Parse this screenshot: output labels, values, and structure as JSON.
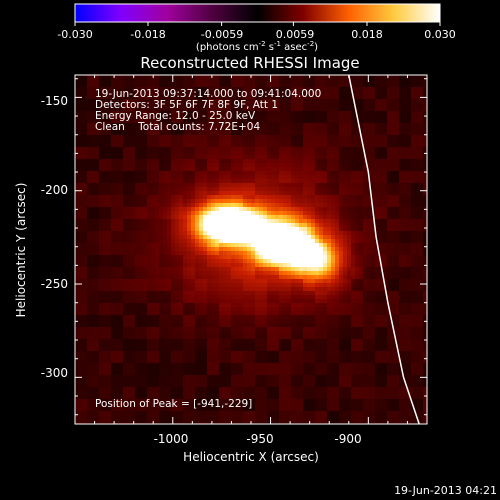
{
  "colorbar": {
    "ticks": [
      "-0.030",
      "-0.018",
      "-0.0059",
      "0.0059",
      "0.018",
      "0.030"
    ],
    "tick_values": [
      -0.03,
      -0.018,
      -0.0059,
      0.0059,
      0.018,
      0.03
    ],
    "range": [
      -0.03,
      0.03
    ],
    "units_text": "(photons cm",
    "units_sup1": "-2",
    "units_mid": " s",
    "units_sup2": "-1",
    "units_end": " asec",
    "units_sup3": "-2",
    "units_close": ")",
    "stops": [
      "#0000ff",
      "#8000ff",
      "#a000a0",
      "#500040",
      "#000000",
      "#800000",
      "#ff6000",
      "#ffcc40",
      "#ffffff"
    ]
  },
  "title": "Reconstructed RHESSI Image",
  "annotations": {
    "time_range": "19-Jun-2013 09:37:14.000 to 09:41:04.000",
    "detectors": "Detectors: 3F 5F 6F 7F 8F 9F, Att 1",
    "energy": "Energy Range: 12.0 - 25.0 keV",
    "clean": "Clean    Total counts: 7.72E+04",
    "peak": "Position of Peak = [-941,-229]"
  },
  "axes": {
    "xlabel": "Heliocentric X (arcsec)",
    "ylabel": "Heliocentric Y (arcsec)",
    "xticks": [
      "-1000",
      "-950",
      "-900"
    ],
    "yticks": [
      "-150",
      "-200",
      "-250",
      "-300"
    ]
  },
  "footer": {
    "timestamp": "19-Jun-2013 04:21"
  },
  "chart_data": {
    "type": "heatmap",
    "title": "Reconstructed RHESSI Image",
    "xlabel": "Heliocentric X (arcsec)",
    "ylabel": "Heliocentric Y (arcsec)",
    "xlim": [
      -1050,
      -870
    ],
    "ylim": [
      -325,
      -138
    ],
    "xticks": [
      -1000,
      -950,
      -900
    ],
    "yticks": [
      -150,
      -200,
      -250,
      -300
    ],
    "colorscale_range": [
      -0.03,
      0.03
    ],
    "peak_position": [
      -941,
      -229
    ],
    "sources": [
      {
        "x": -973,
        "y": -218,
        "sx": 12,
        "sy": 8,
        "amp": 0.03
      },
      {
        "x": -943,
        "y": -228,
        "sx": 11,
        "sy": 9,
        "amp": 0.029
      },
      {
        "x": -925,
        "y": -238,
        "sx": 9,
        "sy": 9,
        "amp": 0.018
      },
      {
        "x": -958,
        "y": -225,
        "sx": 30,
        "sy": 25,
        "amp": 0.012
      }
    ],
    "background_level": 0.0035,
    "limb": [
      [
        -910,
        -138
      ],
      [
        -900,
        -190
      ],
      [
        -896,
        -225
      ],
      [
        -890,
        -260
      ],
      [
        -882,
        -300
      ],
      [
        -874,
        -325
      ]
    ]
  }
}
